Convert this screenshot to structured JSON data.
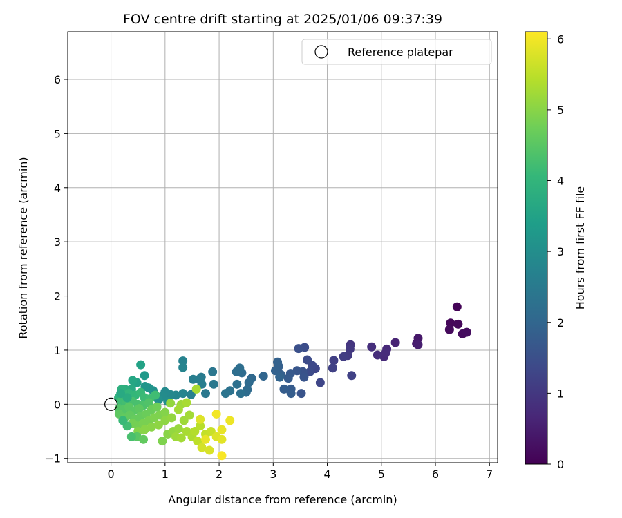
{
  "chart_data": {
    "type": "scatter",
    "title": "FOV centre drift starting at 2025/01/06 09:37:39",
    "xlabel": "Angular distance from reference (arcmin)",
    "ylabel": "Rotation from reference (arcmin)",
    "xlim": [
      -0.8,
      7.15
    ],
    "ylim": [
      -1.08,
      6.88
    ],
    "xticks": [
      0,
      1,
      2,
      3,
      4,
      5,
      6,
      7
    ],
    "yticks": [
      -1,
      0,
      1,
      2,
      3,
      4,
      5,
      6
    ],
    "grid": true,
    "legend": {
      "placement": "top-right",
      "entries": [
        "Reference platepar"
      ]
    },
    "reference_point": {
      "x": 0,
      "y": 0,
      "label": "Reference platepar"
    },
    "colorbar": {
      "label": "Hours from first FF file",
      "colormap": "viridis",
      "range": [
        0,
        6.1
      ],
      "ticks": [
        0,
        1,
        2,
        3,
        4,
        5,
        6
      ]
    },
    "colormap_stops": [
      "#440154",
      "#482878",
      "#3e4989",
      "#31688e",
      "#26828e",
      "#1f9e89",
      "#35b779",
      "#6ece58",
      "#b5de2b",
      "#fde725"
    ],
    "points": [
      {
        "x": 6.4,
        "y": 1.8,
        "c": 0.05
      },
      {
        "x": 6.28,
        "y": 1.5,
        "c": 0.1
      },
      {
        "x": 6.42,
        "y": 1.48,
        "c": 0.12
      },
      {
        "x": 6.26,
        "y": 1.38,
        "c": 0.15
      },
      {
        "x": 6.5,
        "y": 1.3,
        "c": 0.18
      },
      {
        "x": 6.58,
        "y": 1.33,
        "c": 0.2
      },
      {
        "x": 5.68,
        "y": 1.22,
        "c": 0.4
      },
      {
        "x": 5.65,
        "y": 1.12,
        "c": 0.45
      },
      {
        "x": 5.68,
        "y": 1.1,
        "c": 0.5
      },
      {
        "x": 5.26,
        "y": 1.14,
        "c": 0.6
      },
      {
        "x": 5.1,
        "y": 1.02,
        "c": 0.7
      },
      {
        "x": 5.05,
        "y": 0.88,
        "c": 0.72
      },
      {
        "x": 5.08,
        "y": 0.95,
        "c": 0.75
      },
      {
        "x": 4.93,
        "y": 0.91,
        "c": 0.8
      },
      {
        "x": 4.82,
        "y": 1.06,
        "c": 0.82
      },
      {
        "x": 4.43,
        "y": 1.1,
        "c": 0.95
      },
      {
        "x": 4.42,
        "y": 1.02,
        "c": 1.0
      },
      {
        "x": 4.38,
        "y": 0.9,
        "c": 1.05
      },
      {
        "x": 4.3,
        "y": 0.88,
        "c": 1.1
      },
      {
        "x": 4.12,
        "y": 0.81,
        "c": 1.15
      },
      {
        "x": 4.1,
        "y": 0.67,
        "c": 1.2
      },
      {
        "x": 4.45,
        "y": 0.53,
        "c": 1.2
      },
      {
        "x": 3.87,
        "y": 0.4,
        "c": 1.3
      },
      {
        "x": 3.78,
        "y": 0.66,
        "c": 1.3
      },
      {
        "x": 3.72,
        "y": 0.72,
        "c": 1.35
      },
      {
        "x": 3.68,
        "y": 0.6,
        "c": 1.4
      },
      {
        "x": 3.63,
        "y": 0.82,
        "c": 1.4
      },
      {
        "x": 3.58,
        "y": 1.05,
        "c": 1.45
      },
      {
        "x": 3.47,
        "y": 1.03,
        "c": 1.5
      },
      {
        "x": 3.55,
        "y": 0.6,
        "c": 1.55
      },
      {
        "x": 3.57,
        "y": 0.5,
        "c": 1.6
      },
      {
        "x": 3.52,
        "y": 0.2,
        "c": 1.6
      },
      {
        "x": 3.44,
        "y": 0.62,
        "c": 1.65
      },
      {
        "x": 3.32,
        "y": 0.57,
        "c": 1.7
      },
      {
        "x": 3.28,
        "y": 0.48,
        "c": 1.75
      },
      {
        "x": 3.33,
        "y": 0.28,
        "c": 1.75
      },
      {
        "x": 3.33,
        "y": 0.2,
        "c": 1.8
      },
      {
        "x": 3.2,
        "y": 0.28,
        "c": 1.8
      },
      {
        "x": 3.14,
        "y": 0.55,
        "c": 1.85
      },
      {
        "x": 3.1,
        "y": 0.7,
        "c": 1.85
      },
      {
        "x": 3.08,
        "y": 0.78,
        "c": 1.9
      },
      {
        "x": 3.04,
        "y": 0.62,
        "c": 1.9
      },
      {
        "x": 3.12,
        "y": 0.5,
        "c": 1.95
      },
      {
        "x": 2.82,
        "y": 0.52,
        "c": 2.0
      },
      {
        "x": 2.6,
        "y": 0.48,
        "c": 2.05
      },
      {
        "x": 2.55,
        "y": 0.4,
        "c": 2.1
      },
      {
        "x": 2.52,
        "y": 0.27,
        "c": 2.1
      },
      {
        "x": 2.5,
        "y": 0.22,
        "c": 2.15
      },
      {
        "x": 2.42,
        "y": 0.58,
        "c": 2.15
      },
      {
        "x": 2.38,
        "y": 0.67,
        "c": 2.2
      },
      {
        "x": 2.32,
        "y": 0.6,
        "c": 2.2
      },
      {
        "x": 2.33,
        "y": 0.37,
        "c": 2.25
      },
      {
        "x": 2.4,
        "y": 0.2,
        "c": 2.25
      },
      {
        "x": 2.2,
        "y": 0.25,
        "c": 2.3
      },
      {
        "x": 2.12,
        "y": 0.2,
        "c": 2.35
      },
      {
        "x": 1.88,
        "y": 0.6,
        "c": 2.4
      },
      {
        "x": 1.9,
        "y": 0.37,
        "c": 2.45
      },
      {
        "x": 1.75,
        "y": 0.2,
        "c": 2.45
      },
      {
        "x": 1.67,
        "y": 0.5,
        "c": 2.5
      },
      {
        "x": 1.63,
        "y": 0.46,
        "c": 2.55
      },
      {
        "x": 1.52,
        "y": 0.46,
        "c": 2.6
      },
      {
        "x": 1.68,
        "y": 0.37,
        "c": 2.6
      },
      {
        "x": 1.48,
        "y": 0.18,
        "c": 2.65
      },
      {
        "x": 1.33,
        "y": 0.8,
        "c": 2.7
      },
      {
        "x": 1.33,
        "y": 0.68,
        "c": 2.75
      },
      {
        "x": 1.33,
        "y": 0.2,
        "c": 2.75
      },
      {
        "x": 1.2,
        "y": 0.17,
        "c": 2.8
      },
      {
        "x": 1.1,
        "y": 0.18,
        "c": 2.85
      },
      {
        "x": 1.0,
        "y": 0.23,
        "c": 2.9
      },
      {
        "x": 0.95,
        "y": 0.15,
        "c": 2.95
      },
      {
        "x": 1.05,
        "y": 0.05,
        "c": 3.0
      },
      {
        "x": 0.88,
        "y": 0.08,
        "c": 3.05
      },
      {
        "x": 0.78,
        "y": 0.25,
        "c": 3.1
      },
      {
        "x": 0.7,
        "y": 0.3,
        "c": 3.15
      },
      {
        "x": 0.63,
        "y": 0.33,
        "c": 3.2
      },
      {
        "x": 0.62,
        "y": 0.53,
        "c": 3.3
      },
      {
        "x": 0.55,
        "y": 0.73,
        "c": 3.5
      },
      {
        "x": 0.48,
        "y": 0.4,
        "c": 3.5
      },
      {
        "x": 0.4,
        "y": 0.44,
        "c": 3.6
      },
      {
        "x": 0.38,
        "y": 0.28,
        "c": 3.7
      },
      {
        "x": 0.27,
        "y": 0.27,
        "c": 3.8
      },
      {
        "x": 0.2,
        "y": 0.28,
        "c": 3.85
      },
      {
        "x": 0.14,
        "y": 0.12,
        "c": 3.9
      },
      {
        "x": 0.25,
        "y": 0.15,
        "c": 3.95
      },
      {
        "x": 0.33,
        "y": 0.2,
        "c": 4.0
      },
      {
        "x": 0.45,
        "y": 0.17,
        "c": 4.05
      },
      {
        "x": 0.55,
        "y": 0.22,
        "c": 4.1
      },
      {
        "x": 0.62,
        "y": 0.12,
        "c": 4.15
      },
      {
        "x": 0.72,
        "y": 0.1,
        "c": 4.2
      },
      {
        "x": 0.82,
        "y": 0.17,
        "c": 4.2
      },
      {
        "x": 0.18,
        "y": 0.05,
        "c": 4.2
      },
      {
        "x": 0.28,
        "y": 0.02,
        "c": 4.25
      },
      {
        "x": 0.4,
        "y": 0.05,
        "c": 4.3
      },
      {
        "x": 0.5,
        "y": 0.0,
        "c": 4.3
      },
      {
        "x": 0.6,
        "y": -0.02,
        "c": 4.35
      },
      {
        "x": 0.7,
        "y": 0.03,
        "c": 4.4
      },
      {
        "x": 0.15,
        "y": -0.08,
        "c": 4.4
      },
      {
        "x": 0.23,
        "y": -0.1,
        "c": 4.45
      },
      {
        "x": 0.33,
        "y": -0.05,
        "c": 4.5
      },
      {
        "x": 0.42,
        "y": -0.12,
        "c": 4.5
      },
      {
        "x": 0.52,
        "y": -0.08,
        "c": 4.55
      },
      {
        "x": 0.15,
        "y": -0.18,
        "c": 4.55
      },
      {
        "x": 0.25,
        "y": -0.25,
        "c": 4.6
      },
      {
        "x": 0.35,
        "y": -0.2,
        "c": 4.6
      },
      {
        "x": 0.45,
        "y": -0.28,
        "c": 4.65
      },
      {
        "x": 0.55,
        "y": -0.22,
        "c": 4.65
      },
      {
        "x": 0.65,
        "y": -0.18,
        "c": 4.7
      },
      {
        "x": 0.75,
        "y": -0.1,
        "c": 4.7
      },
      {
        "x": 0.85,
        "y": -0.05,
        "c": 4.75
      },
      {
        "x": 0.4,
        "y": -0.35,
        "c": 4.8
      },
      {
        "x": 0.5,
        "y": -0.4,
        "c": 4.8
      },
      {
        "x": 0.6,
        "y": -0.35,
        "c": 4.85
      },
      {
        "x": 0.7,
        "y": -0.3,
        "c": 4.85
      },
      {
        "x": 0.8,
        "y": -0.25,
        "c": 4.9
      },
      {
        "x": 0.9,
        "y": -0.2,
        "c": 4.9
      },
      {
        "x": 1.0,
        "y": -0.15,
        "c": 4.95
      },
      {
        "x": 0.5,
        "y": -0.5,
        "c": 4.95
      },
      {
        "x": 0.62,
        "y": -0.47,
        "c": 5.0
      },
      {
        "x": 0.75,
        "y": -0.42,
        "c": 5.0
      },
      {
        "x": 0.88,
        "y": -0.38,
        "c": 5.05
      },
      {
        "x": 1.0,
        "y": -0.3,
        "c": 5.05
      },
      {
        "x": 1.12,
        "y": -0.25,
        "c": 5.1
      },
      {
        "x": 0.48,
        "y": -0.6,
        "c": 4.5
      },
      {
        "x": 0.6,
        "y": -0.65,
        "c": 4.6
      },
      {
        "x": 0.95,
        "y": -0.68,
        "c": 4.9
      },
      {
        "x": 1.05,
        "y": -0.55,
        "c": 5.0
      },
      {
        "x": 1.15,
        "y": -0.5,
        "c": 5.1
      },
      {
        "x": 1.25,
        "y": -0.45,
        "c": 5.15
      },
      {
        "x": 1.2,
        "y": -0.6,
        "c": 5.2
      },
      {
        "x": 1.3,
        "y": -0.62,
        "c": 5.25
      },
      {
        "x": 1.35,
        "y": -0.3,
        "c": 5.2
      },
      {
        "x": 1.45,
        "y": -0.2,
        "c": 5.25
      },
      {
        "x": 1.4,
        "y": -0.5,
        "c": 5.3
      },
      {
        "x": 1.5,
        "y": -0.6,
        "c": 5.35
      },
      {
        "x": 1.55,
        "y": -0.5,
        "c": 5.4
      },
      {
        "x": 1.65,
        "y": -0.4,
        "c": 5.45
      },
      {
        "x": 1.6,
        "y": -0.68,
        "c": 5.5
      },
      {
        "x": 1.75,
        "y": -0.55,
        "c": 5.55
      },
      {
        "x": 1.85,
        "y": -0.5,
        "c": 5.6
      },
      {
        "x": 1.68,
        "y": -0.8,
        "c": 5.7
      },
      {
        "x": 1.82,
        "y": -0.85,
        "c": 5.75
      },
      {
        "x": 1.95,
        "y": -0.6,
        "c": 5.8
      },
      {
        "x": 2.05,
        "y": -0.65,
        "c": 5.85
      },
      {
        "x": 2.05,
        "y": -0.47,
        "c": 5.9
      },
      {
        "x": 2.2,
        "y": -0.3,
        "c": 5.95
      },
      {
        "x": 1.95,
        "y": -0.18,
        "c": 6.0
      },
      {
        "x": 2.05,
        "y": -0.95,
        "c": 6.05
      },
      {
        "x": 1.65,
        "y": -0.28,
        "c": 5.8
      },
      {
        "x": 1.75,
        "y": -0.65,
        "c": 5.9
      },
      {
        "x": 1.58,
        "y": 0.28,
        "c": 5.3
      },
      {
        "x": 1.1,
        "y": 0.02,
        "c": 5.1
      },
      {
        "x": 1.3,
        "y": 0.0,
        "c": 5.2
      },
      {
        "x": 1.4,
        "y": 0.03,
        "c": 5.3
      },
      {
        "x": 1.25,
        "y": -0.1,
        "c": 5.25
      },
      {
        "x": 0.3,
        "y": -0.4,
        "c": 4.2
      },
      {
        "x": 0.38,
        "y": -0.6,
        "c": 4.3
      },
      {
        "x": 0.22,
        "y": -0.3,
        "c": 4.1
      },
      {
        "x": 0.3,
        "y": 0.12,
        "c": 3.75
      },
      {
        "x": 0.18,
        "y": 0.2,
        "c": 3.7
      }
    ]
  }
}
